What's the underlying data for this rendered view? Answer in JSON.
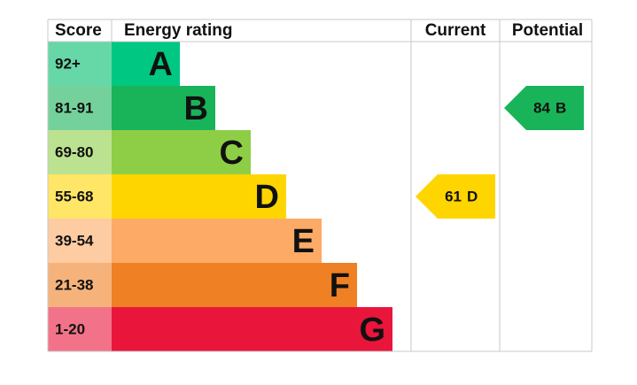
{
  "header": {
    "score": "Score",
    "rating": "Energy rating",
    "current": "Current",
    "potential": "Potential"
  },
  "bands": [
    {
      "score": "92+",
      "letter": "A",
      "color": "#00c781",
      "tint": "#66d7a7"
    },
    {
      "score": "81-91",
      "letter": "B",
      "color": "#19b459",
      "tint": "#75d19b"
    },
    {
      "score": "69-80",
      "letter": "C",
      "color": "#8dce46",
      "tint": "#bbe290"
    },
    {
      "score": "55-68",
      "letter": "D",
      "color": "#ffd500",
      "tint": "#ffe666"
    },
    {
      "score": "39-54",
      "letter": "E",
      "color": "#fcaa65",
      "tint": "#fdcca3"
    },
    {
      "score": "21-38",
      "letter": "F",
      "color": "#ef8023",
      "tint": "#f5b37b"
    },
    {
      "score": "1-20",
      "letter": "G",
      "color": "#e9153b",
      "tint": "#f27389"
    }
  ],
  "current": {
    "value": 61,
    "letter": "D"
  },
  "potential": {
    "value": 84,
    "letter": "B"
  }
}
